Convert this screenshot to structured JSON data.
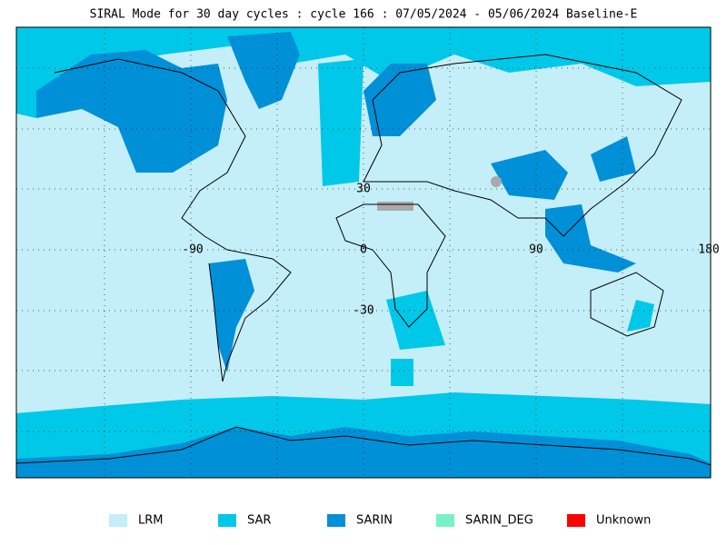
{
  "title": "SIRAL Mode for 30 day cycles : cycle 166 : 07/05/2024 - 05/06/2024 Baseline-E",
  "lat_labels": [
    "30",
    "-30"
  ],
  "lon_labels": [
    "-90",
    "0",
    "90",
    "180"
  ],
  "legend": [
    {
      "label": "LRM",
      "color": "#c4eef8"
    },
    {
      "label": "SAR",
      "color": "#00c8e8"
    },
    {
      "label": "SARIN",
      "color": "#0090d8"
    },
    {
      "label": "SARIN_DEG",
      "color": "#78f0c8"
    },
    {
      "label": "Unknown",
      "color": "#ff0000"
    }
  ]
}
